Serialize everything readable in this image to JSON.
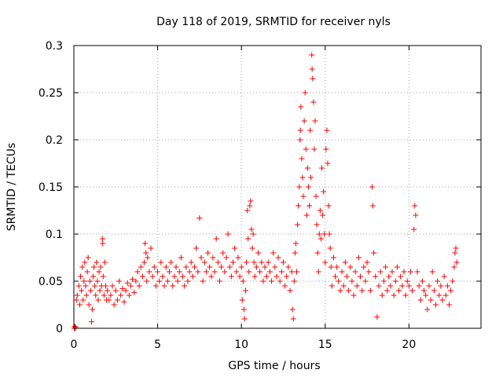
{
  "chart_data": {
    "type": "scatter",
    "title": "Day 118 of 2019, SRMTID for receiver nyls",
    "xlabel": "GPS time / hours",
    "ylabel": "SRMTID / TECUs",
    "xlim": [
      0,
      24.3
    ],
    "ylim": [
      0,
      0.3
    ],
    "x_ticks": [
      0,
      5,
      10,
      15,
      20
    ],
    "x_tick_labels": [
      "0",
      "5",
      "10",
      "15",
      "20"
    ],
    "y_ticks": [
      0,
      0.05,
      0.1,
      0.15,
      0.2,
      0.25,
      0.3
    ],
    "y_tick_labels": [
      "0",
      "0.05",
      "0.1",
      "0.15",
      "0.2",
      "0.25",
      "0.3"
    ],
    "grid": true,
    "marker": "plus",
    "point_color": "#ff0000",
    "series": [
      {
        "name": "SRMTID",
        "points": [
          [
            0.02,
            0.0
          ],
          [
            0.05,
            0.002
          ],
          [
            0.1,
            0.001
          ],
          [
            0.08,
            0.0
          ],
          [
            0.15,
            0.03
          ],
          [
            0.2,
            0.035
          ],
          [
            0.3,
            0.045
          ],
          [
            0.35,
            0.025
          ],
          [
            0.4,
            0.055
          ],
          [
            0.45,
            0.04
          ],
          [
            0.5,
            0.065
          ],
          [
            0.55,
            0.03
          ],
          [
            0.6,
            0.05
          ],
          [
            0.65,
            0.07
          ],
          [
            0.7,
            0.045
          ],
          [
            0.75,
            0.035
          ],
          [
            0.8,
            0.06
          ],
          [
            0.85,
            0.075
          ],
          [
            0.9,
            0.025
          ],
          [
            0.95,
            0.05
          ],
          [
            1.0,
            0.04
          ],
          [
            1.05,
            0.007
          ],
          [
            1.1,
            0.02
          ],
          [
            1.15,
            0.055
          ],
          [
            1.2,
            0.065
          ],
          [
            1.25,
            0.045
          ],
          [
            1.3,
            0.035
          ],
          [
            1.35,
            0.07
          ],
          [
            1.4,
            0.05
          ],
          [
            1.45,
            0.03
          ],
          [
            1.5,
            0.06
          ],
          [
            1.55,
            0.04
          ],
          [
            1.6,
            0.065
          ],
          [
            1.65,
            0.045
          ],
          [
            1.7,
            0.095
          ],
          [
            1.72,
            0.09
          ],
          [
            1.75,
            0.055
          ],
          [
            1.8,
            0.035
          ],
          [
            1.85,
            0.07
          ],
          [
            1.9,
            0.045
          ],
          [
            1.95,
            0.03
          ],
          [
            2.0,
            0.04
          ],
          [
            2.1,
            0.03
          ],
          [
            2.2,
            0.035
          ],
          [
            2.3,
            0.045
          ],
          [
            2.4,
            0.025
          ],
          [
            2.5,
            0.04
          ],
          [
            2.6,
            0.03
          ],
          [
            2.7,
            0.05
          ],
          [
            2.8,
            0.035
          ],
          [
            2.9,
            0.042
          ],
          [
            3.0,
            0.028
          ],
          [
            3.1,
            0.04
          ],
          [
            3.2,
            0.048
          ],
          [
            3.3,
            0.035
          ],
          [
            3.4,
            0.045
          ],
          [
            3.5,
            0.052
          ],
          [
            3.6,
            0.038
          ],
          [
            3.7,
            0.05
          ],
          [
            3.8,
            0.06
          ],
          [
            3.9,
            0.045
          ],
          [
            4.0,
            0.065
          ],
          [
            4.1,
            0.055
          ],
          [
            4.2,
            0.07
          ],
          [
            4.25,
            0.09
          ],
          [
            4.3,
            0.08
          ],
          [
            4.35,
            0.05
          ],
          [
            4.4,
            0.075
          ],
          [
            4.5,
            0.06
          ],
          [
            4.6,
            0.085
          ],
          [
            4.7,
            0.055
          ],
          [
            4.8,
            0.065
          ],
          [
            4.9,
            0.045
          ],
          [
            5.0,
            0.06
          ],
          [
            5.1,
            0.05
          ],
          [
            5.2,
            0.07
          ],
          [
            5.3,
            0.055
          ],
          [
            5.4,
            0.045
          ],
          [
            5.5,
            0.065
          ],
          [
            5.6,
            0.05
          ],
          [
            5.7,
            0.06
          ],
          [
            5.8,
            0.07
          ],
          [
            5.9,
            0.045
          ],
          [
            6.0,
            0.055
          ],
          [
            6.1,
            0.065
          ],
          [
            6.2,
            0.05
          ],
          [
            6.3,
            0.06
          ],
          [
            6.4,
            0.075
          ],
          [
            6.5,
            0.055
          ],
          [
            6.6,
            0.045
          ],
          [
            6.7,
            0.065
          ],
          [
            6.8,
            0.05
          ],
          [
            6.9,
            0.06
          ],
          [
            7.0,
            0.07
          ],
          [
            7.1,
            0.055
          ],
          [
            7.2,
            0.065
          ],
          [
            7.3,
            0.085
          ],
          [
            7.4,
            0.06
          ],
          [
            7.5,
            0.117
          ],
          [
            7.6,
            0.075
          ],
          [
            7.7,
            0.05
          ],
          [
            7.8,
            0.07
          ],
          [
            7.9,
            0.06
          ],
          [
            8.0,
            0.08
          ],
          [
            8.1,
            0.065
          ],
          [
            8.2,
            0.055
          ],
          [
            8.3,
            0.075
          ],
          [
            8.4,
            0.06
          ],
          [
            8.5,
            0.095
          ],
          [
            8.6,
            0.07
          ],
          [
            8.7,
            0.05
          ],
          [
            8.8,
            0.065
          ],
          [
            8.9,
            0.08
          ],
          [
            9.0,
            0.06
          ],
          [
            9.1,
            0.075
          ],
          [
            9.2,
            0.1
          ],
          [
            9.3,
            0.065
          ],
          [
            9.4,
            0.055
          ],
          [
            9.5,
            0.07
          ],
          [
            9.6,
            0.085
          ],
          [
            9.7,
            0.06
          ],
          [
            9.8,
            0.075
          ],
          [
            9.9,
            0.055
          ],
          [
            10.0,
            0.065
          ],
          [
            10.05,
            0.03
          ],
          [
            10.1,
            0.05
          ],
          [
            10.15,
            0.02
          ],
          [
            10.2,
            0.01
          ],
          [
            10.25,
            0.04
          ],
          [
            10.3,
            0.07
          ],
          [
            10.35,
            0.125
          ],
          [
            10.4,
            0.095
          ],
          [
            10.45,
            0.06
          ],
          [
            10.5,
            0.13
          ],
          [
            10.55,
            0.135
          ],
          [
            10.6,
            0.105
          ],
          [
            10.65,
            0.085
          ],
          [
            10.7,
            0.1
          ],
          [
            10.75,
            0.07
          ],
          [
            10.8,
            0.055
          ],
          [
            10.9,
            0.065
          ],
          [
            11.0,
            0.08
          ],
          [
            11.1,
            0.06
          ],
          [
            11.2,
            0.07
          ],
          [
            11.3,
            0.05
          ],
          [
            11.4,
            0.065
          ],
          [
            11.5,
            0.055
          ],
          [
            11.6,
            0.07
          ],
          [
            11.7,
            0.06
          ],
          [
            11.8,
            0.05
          ],
          [
            11.9,
            0.08
          ],
          [
            12.0,
            0.065
          ],
          [
            12.1,
            0.055
          ],
          [
            12.2,
            0.075
          ],
          [
            12.3,
            0.05
          ],
          [
            12.4,
            0.06
          ],
          [
            12.5,
            0.07
          ],
          [
            12.6,
            0.045
          ],
          [
            12.7,
            0.055
          ],
          [
            12.8,
            0.065
          ],
          [
            12.9,
            0.04
          ],
          [
            13.0,
            0.06
          ],
          [
            13.05,
            0.02
          ],
          [
            13.1,
            0.01
          ],
          [
            13.15,
            0.05
          ],
          [
            13.2,
            0.08
          ],
          [
            13.25,
            0.09
          ],
          [
            13.3,
            0.06
          ],
          [
            13.35,
            0.11
          ],
          [
            13.4,
            0.13
          ],
          [
            13.45,
            0.15
          ],
          [
            13.5,
            0.2
          ],
          [
            13.52,
            0.21
          ],
          [
            13.55,
            0.235
          ],
          [
            13.6,
            0.18
          ],
          [
            13.65,
            0.16
          ],
          [
            13.7,
            0.14
          ],
          [
            13.75,
            0.22
          ],
          [
            13.8,
            0.25
          ],
          [
            13.85,
            0.19
          ],
          [
            13.9,
            0.12
          ],
          [
            13.95,
            0.17
          ],
          [
            14.0,
            0.15
          ],
          [
            14.05,
            0.13
          ],
          [
            14.1,
            0.21
          ],
          [
            14.15,
            0.16
          ],
          [
            14.2,
            0.29
          ],
          [
            14.22,
            0.275
          ],
          [
            14.25,
            0.265
          ],
          [
            14.3,
            0.24
          ],
          [
            14.35,
            0.19
          ],
          [
            14.4,
            0.22
          ],
          [
            14.45,
            0.14
          ],
          [
            14.5,
            0.11
          ],
          [
            14.55,
            0.08
          ],
          [
            14.6,
            0.06
          ],
          [
            14.65,
            0.1
          ],
          [
            14.7,
            0.125
          ],
          [
            14.75,
            0.095
          ],
          [
            14.8,
            0.17
          ],
          [
            14.85,
            0.12
          ],
          [
            14.9,
            0.145
          ],
          [
            14.95,
            0.1
          ],
          [
            15.0,
            0.07
          ],
          [
            15.05,
            0.19
          ],
          [
            15.1,
            0.21
          ],
          [
            15.15,
            0.175
          ],
          [
            15.2,
            0.13
          ],
          [
            15.25,
            0.1
          ],
          [
            15.3,
            0.085
          ],
          [
            15.35,
            0.065
          ],
          [
            15.4,
            0.045
          ],
          [
            15.5,
            0.075
          ],
          [
            15.6,
            0.055
          ],
          [
            15.7,
            0.065
          ],
          [
            15.8,
            0.05
          ],
          [
            15.9,
            0.04
          ],
          [
            16.0,
            0.06
          ],
          [
            16.1,
            0.045
          ],
          [
            16.2,
            0.07
          ],
          [
            16.3,
            0.055
          ],
          [
            16.4,
            0.04
          ],
          [
            16.5,
            0.065
          ],
          [
            16.6,
            0.05
          ],
          [
            16.7,
            0.035
          ],
          [
            16.8,
            0.06
          ],
          [
            16.9,
            0.045
          ],
          [
            17.0,
            0.075
          ],
          [
            17.1,
            0.055
          ],
          [
            17.2,
            0.04
          ],
          [
            17.3,
            0.065
          ],
          [
            17.4,
            0.05
          ],
          [
            17.5,
            0.07
          ],
          [
            17.6,
            0.06
          ],
          [
            17.7,
            0.04
          ],
          [
            17.8,
            0.15
          ],
          [
            17.85,
            0.13
          ],
          [
            17.9,
            0.08
          ],
          [
            18.0,
            0.055
          ],
          [
            18.1,
            0.012
          ],
          [
            18.2,
            0.045
          ],
          [
            18.3,
            0.06
          ],
          [
            18.4,
            0.035
          ],
          [
            18.5,
            0.05
          ],
          [
            18.6,
            0.065
          ],
          [
            18.7,
            0.04
          ],
          [
            18.8,
            0.055
          ],
          [
            18.9,
            0.045
          ],
          [
            19.0,
            0.06
          ],
          [
            19.1,
            0.035
          ],
          [
            19.2,
            0.05
          ],
          [
            19.3,
            0.065
          ],
          [
            19.4,
            0.04
          ],
          [
            19.5,
            0.055
          ],
          [
            19.6,
            0.045
          ],
          [
            19.7,
            0.06
          ],
          [
            19.8,
            0.035
          ],
          [
            19.9,
            0.05
          ],
          [
            20.0,
            0.045
          ],
          [
            20.1,
            0.06
          ],
          [
            20.2,
            0.04
          ],
          [
            20.3,
            0.105
          ],
          [
            20.35,
            0.13
          ],
          [
            20.4,
            0.12
          ],
          [
            20.5,
            0.06
          ],
          [
            20.6,
            0.045
          ],
          [
            20.7,
            0.03
          ],
          [
            20.8,
            0.05
          ],
          [
            20.9,
            0.04
          ],
          [
            21.0,
            0.035
          ],
          [
            21.1,
            0.02
          ],
          [
            21.2,
            0.045
          ],
          [
            21.3,
            0.03
          ],
          [
            21.4,
            0.06
          ],
          [
            21.5,
            0.04
          ],
          [
            21.6,
            0.025
          ],
          [
            21.7,
            0.05
          ],
          [
            21.8,
            0.035
          ],
          [
            21.9,
            0.045
          ],
          [
            22.0,
            0.03
          ],
          [
            22.1,
            0.055
          ],
          [
            22.2,
            0.035
          ],
          [
            22.3,
            0.045
          ],
          [
            22.4,
            0.025
          ],
          [
            22.5,
            0.04
          ],
          [
            22.6,
            0.05
          ],
          [
            22.7,
            0.065
          ],
          [
            22.75,
            0.08
          ],
          [
            22.8,
            0.085
          ],
          [
            22.85,
            0.07
          ]
        ]
      }
    ]
  }
}
